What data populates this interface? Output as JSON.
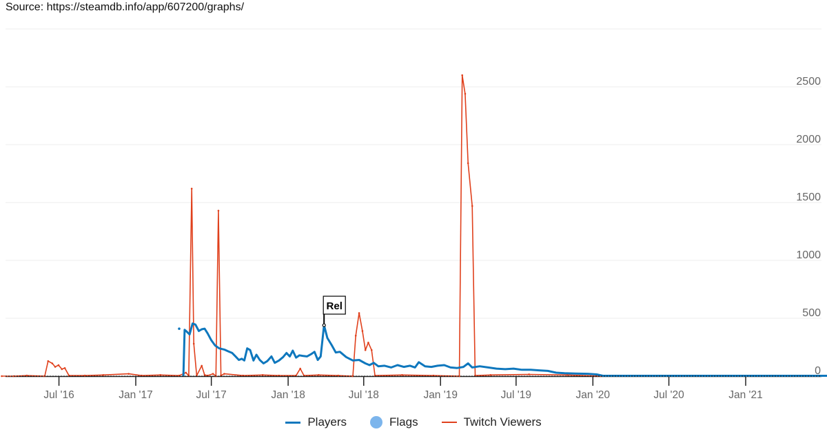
{
  "header": {
    "source": "Source: https://steamdb.info/app/607200/graphs/"
  },
  "legend": {
    "items": [
      {
        "label": "Players",
        "color": "#0e77bd",
        "kind": "line"
      },
      {
        "label": "Flags",
        "color": "#7cb5ec",
        "kind": "dot"
      },
      {
        "label": "Twitch Viewers",
        "color": "#e0401c",
        "kind": "line"
      }
    ]
  },
  "annotation": {
    "label": "Rel",
    "date": "2018-03-28",
    "value": 440
  },
  "chart_data": {
    "type": "line",
    "title": "",
    "xlabel": "",
    "ylabel": "",
    "ylim": [
      0,
      3000
    ],
    "yticks": [
      0,
      500,
      1000,
      1500,
      2000,
      2500
    ],
    "xticks": [
      "Jul '16",
      "Jan '17",
      "Jul '17",
      "Jan '18",
      "Jul '18",
      "Jan '19",
      "Jul '19",
      "Jan '20",
      "Jul '20",
      "Jan '21"
    ],
    "x_range": [
      "2016-02-15",
      "2021-09-30"
    ],
    "grid": true,
    "legend_position": "bottom",
    "series": [
      {
        "name": "Players",
        "color": "#0e77bd",
        "points": [
          [
            "2017-04-25",
            0
          ],
          [
            "2017-04-28",
            400
          ],
          [
            "2017-05-03",
            385
          ],
          [
            "2017-05-10",
            360
          ],
          [
            "2017-05-17",
            455
          ],
          [
            "2017-05-24",
            445
          ],
          [
            "2017-06-01",
            390
          ],
          [
            "2017-06-08",
            405
          ],
          [
            "2017-06-15",
            410
          ],
          [
            "2017-06-22",
            370
          ],
          [
            "2017-07-01",
            310
          ],
          [
            "2017-07-10",
            265
          ],
          [
            "2017-07-20",
            240
          ],
          [
            "2017-08-01",
            230
          ],
          [
            "2017-08-10",
            215
          ],
          [
            "2017-08-20",
            200
          ],
          [
            "2017-08-28",
            170
          ],
          [
            "2017-09-05",
            140
          ],
          [
            "2017-09-12",
            150
          ],
          [
            "2017-09-18",
            135
          ],
          [
            "2017-09-25",
            240
          ],
          [
            "2017-10-02",
            225
          ],
          [
            "2017-10-10",
            135
          ],
          [
            "2017-10-17",
            185
          ],
          [
            "2017-10-25",
            140
          ],
          [
            "2017-11-03",
            110
          ],
          [
            "2017-11-12",
            130
          ],
          [
            "2017-11-22",
            170
          ],
          [
            "2017-11-30",
            115
          ],
          [
            "2017-12-10",
            135
          ],
          [
            "2017-12-20",
            165
          ],
          [
            "2017-12-28",
            200
          ],
          [
            "2018-01-05",
            170
          ],
          [
            "2018-01-12",
            220
          ],
          [
            "2018-01-20",
            160
          ],
          [
            "2018-01-28",
            180
          ],
          [
            "2018-02-05",
            175
          ],
          [
            "2018-02-15",
            170
          ],
          [
            "2018-02-25",
            190
          ],
          [
            "2018-03-05",
            210
          ],
          [
            "2018-03-13",
            140
          ],
          [
            "2018-03-20",
            170
          ],
          [
            "2018-03-28",
            440
          ],
          [
            "2018-04-05",
            330
          ],
          [
            "2018-04-15",
            270
          ],
          [
            "2018-04-25",
            205
          ],
          [
            "2018-05-05",
            210
          ],
          [
            "2018-05-20",
            165
          ],
          [
            "2018-06-05",
            135
          ],
          [
            "2018-06-20",
            140
          ],
          [
            "2018-07-05",
            110
          ],
          [
            "2018-07-15",
            95
          ],
          [
            "2018-07-25",
            115
          ],
          [
            "2018-08-05",
            85
          ],
          [
            "2018-08-20",
            90
          ],
          [
            "2018-09-05",
            75
          ],
          [
            "2018-09-20",
            95
          ],
          [
            "2018-10-05",
            80
          ],
          [
            "2018-10-20",
            90
          ],
          [
            "2018-11-01",
            75
          ],
          [
            "2018-11-10",
            120
          ],
          [
            "2018-11-25",
            85
          ],
          [
            "2018-12-10",
            80
          ],
          [
            "2018-12-25",
            90
          ],
          [
            "2019-01-10",
            95
          ],
          [
            "2019-01-25",
            75
          ],
          [
            "2019-02-10",
            70
          ],
          [
            "2019-02-25",
            80
          ],
          [
            "2019-03-08",
            110
          ],
          [
            "2019-03-18",
            75
          ],
          [
            "2019-04-05",
            85
          ],
          [
            "2019-04-25",
            75
          ],
          [
            "2019-05-15",
            65
          ],
          [
            "2019-06-05",
            60
          ],
          [
            "2019-06-25",
            65
          ],
          [
            "2019-07-15",
            55
          ],
          [
            "2019-08-05",
            55
          ],
          [
            "2019-08-25",
            50
          ],
          [
            "2019-09-15",
            45
          ],
          [
            "2019-10-05",
            30
          ],
          [
            "2019-10-25",
            25
          ],
          [
            "2019-11-20",
            22
          ],
          [
            "2019-12-20",
            20
          ],
          [
            "2020-01-10",
            15
          ],
          [
            "2020-01-25",
            3
          ],
          [
            "2021-09-30",
            3
          ]
        ]
      },
      {
        "name": "Flags",
        "color": "#7cb5ec",
        "points": [
          [
            "2017-04-15",
            410
          ]
        ]
      },
      {
        "name": "Twitch Viewers",
        "color": "#e0401c",
        "points": [
          [
            "2016-02-15",
            0
          ],
          [
            "2016-03-15",
            0
          ],
          [
            "2016-04-15",
            5
          ],
          [
            "2016-05-28",
            0
          ],
          [
            "2016-06-05",
            130
          ],
          [
            "2016-06-15",
            110
          ],
          [
            "2016-06-22",
            80
          ],
          [
            "2016-06-30",
            95
          ],
          [
            "2016-07-08",
            60
          ],
          [
            "2016-07-15",
            70
          ],
          [
            "2016-07-25",
            5
          ],
          [
            "2016-09-01",
            5
          ],
          [
            "2016-10-15",
            10
          ],
          [
            "2016-12-15",
            20
          ],
          [
            "2017-01-15",
            5
          ],
          [
            "2017-03-01",
            10
          ],
          [
            "2017-04-15",
            5
          ],
          [
            "2017-05-01",
            30
          ],
          [
            "2017-05-08",
            5
          ],
          [
            "2017-05-15",
            1620
          ],
          [
            "2017-05-20",
            280
          ],
          [
            "2017-05-27",
            5
          ],
          [
            "2017-06-08",
            90
          ],
          [
            "2017-06-15",
            10
          ],
          [
            "2017-06-22",
            5
          ],
          [
            "2017-07-05",
            20
          ],
          [
            "2017-07-12",
            0
          ],
          [
            "2017-07-18",
            1430
          ],
          [
            "2017-07-24",
            5
          ],
          [
            "2017-08-01",
            20
          ],
          [
            "2017-09-15",
            5
          ],
          [
            "2017-11-01",
            10
          ],
          [
            "2017-12-10",
            5
          ],
          [
            "2018-01-20",
            5
          ],
          [
            "2018-01-30",
            65
          ],
          [
            "2018-02-08",
            5
          ],
          [
            "2018-03-15",
            10
          ],
          [
            "2018-05-01",
            5
          ],
          [
            "2018-06-05",
            0
          ],
          [
            "2018-06-12",
            350
          ],
          [
            "2018-06-20",
            545
          ],
          [
            "2018-06-28",
            390
          ],
          [
            "2018-07-05",
            225
          ],
          [
            "2018-07-12",
            290
          ],
          [
            "2018-07-20",
            225
          ],
          [
            "2018-07-28",
            5
          ],
          [
            "2018-10-01",
            10
          ],
          [
            "2018-12-15",
            5
          ],
          [
            "2019-02-15",
            0
          ],
          [
            "2019-02-22",
            2600
          ],
          [
            "2019-03-01",
            2440
          ],
          [
            "2019-03-08",
            1840
          ],
          [
            "2019-03-18",
            1470
          ],
          [
            "2019-03-25",
            5
          ],
          [
            "2019-05-01",
            10
          ],
          [
            "2019-08-01",
            15
          ],
          [
            "2019-11-01",
            10
          ],
          [
            "2020-01-20",
            0
          ],
          [
            "2021-09-30",
            0
          ]
        ]
      }
    ]
  }
}
